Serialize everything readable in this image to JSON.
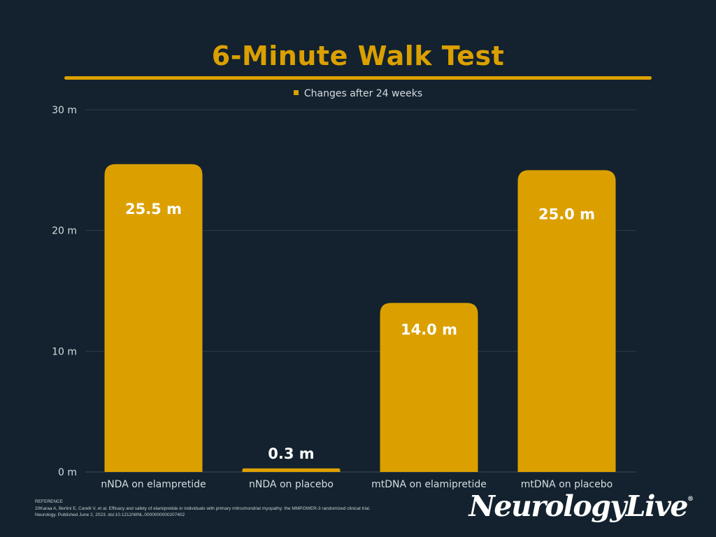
{
  "title": "6-Minute Walk Test",
  "legend": {
    "label": "Changes after 24 weeks"
  },
  "colors": {
    "background": "#13222e",
    "accent": "#dba000",
    "grid": "#2c3d49",
    "text": "#d6dbe0"
  },
  "chart_data": {
    "type": "bar",
    "title": "6-Minute Walk Test",
    "categories": [
      "nNDA on elampretide",
      "nNDA on placebo",
      "mtDNA on elamipretide",
      "mtDNA on placebo"
    ],
    "series": [
      {
        "name": "Changes after 24 weeks",
        "values": [
          25.5,
          0.3,
          14.0,
          25.0
        ]
      }
    ],
    "data_labels": [
      "25.5 m",
      "0.3 m",
      "14.0 m",
      "25.0 m"
    ],
    "y_ticks": [
      0,
      10,
      20,
      30
    ],
    "y_tick_labels": [
      "0 m",
      "10 m",
      "20 m",
      "30 m"
    ],
    "ylim": [
      0,
      30
    ],
    "grid": true,
    "legend_position": "top"
  },
  "reference": {
    "heading": "REFERENCE",
    "text": "20Karaa A, Bertini E, Carelli V, et al. Efficacy and safety of elamipretide in individuals with primary mitrochondrial myopathy: the MMPOWER-3 randomized clinical trial. Neurology. Published June 2, 2023. doi:10.1212/WNL.0000000000207402"
  },
  "logo": {
    "text": "NeurologyLive",
    "mark": "®"
  }
}
